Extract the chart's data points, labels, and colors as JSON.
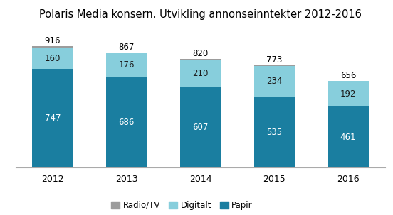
{
  "title": "Polaris Media konsern. Utvikling annonseinntekter 2012-2016",
  "years": [
    "2012",
    "2013",
    "2014",
    "2015",
    "2016"
  ],
  "papir": [
    747,
    686,
    607,
    535,
    461
  ],
  "digitalt": [
    160,
    176,
    210,
    234,
    192
  ],
  "radio_tv": [
    9,
    5,
    3,
    4,
    3
  ],
  "totals": [
    916,
    867,
    820,
    773,
    656
  ],
  "color_papir": "#1A7EA0",
  "color_digitalt": "#87CEDC",
  "color_radio_tv": "#9C9C9C",
  "bar_width": 0.55,
  "title_fontsize": 10.5,
  "label_fontsize": 8.5,
  "tick_fontsize": 9,
  "legend_fontsize": 8.5
}
